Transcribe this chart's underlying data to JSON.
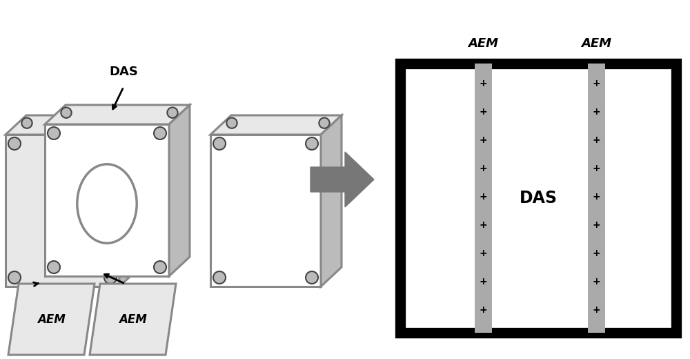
{
  "bg_color": "#ffffff",
  "gray_color": "#888888",
  "dark_gray": "#444444",
  "light_gray": "#bbbbbb",
  "very_light_gray": "#e8e8e8",
  "black": "#000000",
  "arrow_color": "#777777",
  "membrane_gray": "#aaaaaa",
  "das_label": "DAS",
  "aem_label": "AEM",
  "plus_signs": 9
}
